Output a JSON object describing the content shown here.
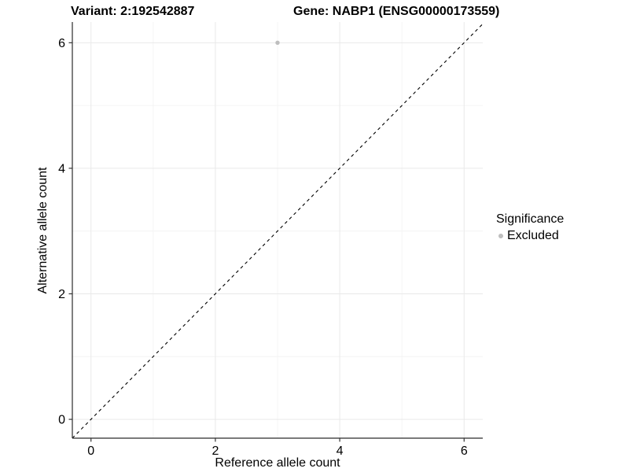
{
  "titles": {
    "variant": "Variant: 2:192542887",
    "gene": "Gene: NABP1 (ENSG00000173559)"
  },
  "chart_data": {
    "type": "scatter",
    "title_left": "Variant: 2:192542887",
    "title_right": "Gene: NABP1 (ENSG00000173559)",
    "xlabel": "Reference allele count",
    "ylabel": "Alternative allele count",
    "xlim": [
      -0.3,
      6.3
    ],
    "ylim": [
      -0.3,
      6.33
    ],
    "x_ticks": [
      0,
      2,
      4,
      6
    ],
    "y_ticks": [
      0,
      2,
      4,
      6
    ],
    "x_minor_gridlines": [
      1,
      3,
      5
    ],
    "y_minor_gridlines": [
      1,
      3,
      5
    ],
    "grid": true,
    "series": [
      {
        "name": "Excluded",
        "color": "#bebebe",
        "points": [
          {
            "x": 3,
            "y": 6
          }
        ]
      }
    ],
    "reference_line": {
      "equation": "y = x",
      "style": "dashed",
      "color": "#000000"
    },
    "legend": {
      "title": "Significance",
      "position": "right"
    },
    "colors": {
      "background": "#ffffff",
      "major_grid": "#e9e9e9",
      "minor_grid": "#f4f4f4",
      "axis_line": "#2b2b2b",
      "tick_mark": "#333333",
      "tick_text": "#000000"
    }
  }
}
